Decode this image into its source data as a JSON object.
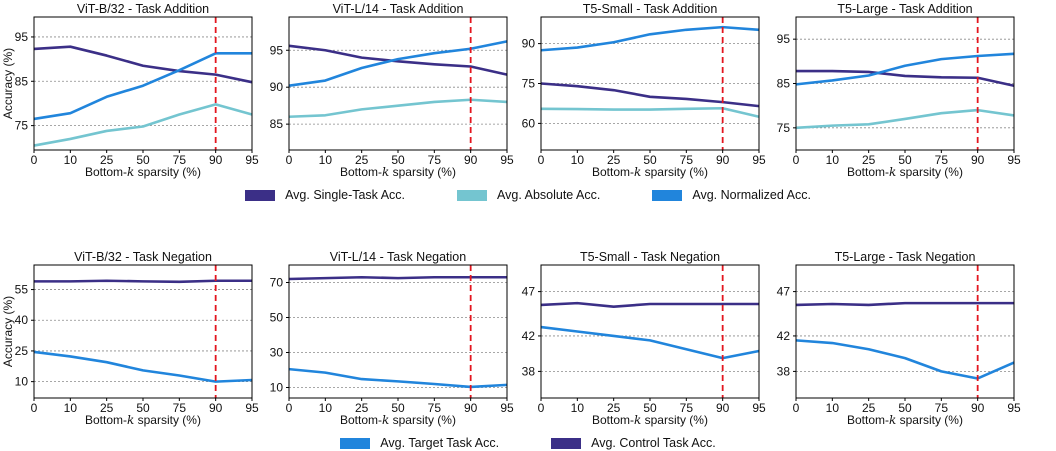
{
  "colors": {
    "single": "#3b2f87",
    "absolute": "#74c5d0",
    "normalized": "#2185dc",
    "target": "#2185dc",
    "control": "#3b2f87",
    "vline": "#e3161f",
    "grid": "#8a8a8a"
  },
  "legend_top": {
    "single": "Avg. Single-Task Acc.",
    "absolute": "Avg. Absolute Acc.",
    "normalized": "Avg. Normalized Acc."
  },
  "legend_bottom": {
    "target": "Avg. Target Task Acc.",
    "control": "Avg. Control Task Acc."
  },
  "chart_data": [
    {
      "type": "line",
      "title": "ViT-B/32 - Task Addition",
      "xlabel": "Bottom-k sparsity (%)",
      "ylabel": "Accuracy (%)",
      "x": [
        "0",
        "10",
        "25",
        "50",
        "75",
        "90",
        "95"
      ],
      "yticks": [
        75,
        85,
        95
      ],
      "ylim": [
        69.5,
        99.5
      ],
      "vline": "90",
      "series": [
        {
          "name": "Avg. Single-Task Acc.",
          "color": "single",
          "values": [
            92.3,
            92.8,
            90.8,
            88.5,
            87.3,
            86.5,
            84.8
          ]
        },
        {
          "name": "Avg. Absolute Acc.",
          "color": "absolute",
          "values": [
            70.5,
            72.0,
            73.8,
            74.8,
            77.5,
            79.8,
            77.5
          ]
        },
        {
          "name": "Avg. Normalized Acc.",
          "color": "normalized",
          "values": [
            76.5,
            77.8,
            81.5,
            84.0,
            87.5,
            91.3,
            91.3
          ]
        }
      ]
    },
    {
      "type": "line",
      "title": "ViT-L/14 - Task Addition",
      "xlabel": "Bottom-k sparsity (%)",
      "ylabel": "",
      "x": [
        "0",
        "10",
        "25",
        "50",
        "75",
        "90",
        "95"
      ],
      "yticks": [
        85,
        90,
        95
      ],
      "ylim": [
        81.5,
        99.5
      ],
      "vline": "90",
      "series": [
        {
          "name": "Avg. Single-Task Acc.",
          "color": "single",
          "values": [
            95.6,
            95.0,
            94.0,
            93.5,
            93.1,
            92.8,
            91.7
          ]
        },
        {
          "name": "Avg. Absolute Acc.",
          "color": "absolute",
          "values": [
            86.0,
            86.2,
            87.0,
            87.5,
            88.0,
            88.3,
            88.0
          ]
        },
        {
          "name": "Avg. Normalized Acc.",
          "color": "normalized",
          "values": [
            90.2,
            90.9,
            92.6,
            93.8,
            94.6,
            95.2,
            96.2
          ]
        }
      ]
    },
    {
      "type": "line",
      "title": "T5-Small - Task Addition",
      "xlabel": "Bottom-k sparsity (%)",
      "ylabel": "",
      "x": [
        "0",
        "10",
        "25",
        "50",
        "75",
        "90",
        "95"
      ],
      "yticks": [
        60,
        75,
        90
      ],
      "ylim": [
        50,
        100
      ],
      "vline": "90",
      "series": [
        {
          "name": "Avg. Single-Task Acc.",
          "color": "single",
          "values": [
            75.0,
            74.0,
            72.5,
            70.0,
            69.2,
            68.0,
            66.5
          ]
        },
        {
          "name": "Avg. Absolute Acc.",
          "color": "absolute",
          "values": [
            65.5,
            65.4,
            65.2,
            65.2,
            65.5,
            65.7,
            62.5
          ]
        },
        {
          "name": "Avg. Normalized Acc.",
          "color": "normalized",
          "values": [
            87.5,
            88.5,
            90.5,
            93.5,
            95.2,
            96.2,
            95.2
          ]
        }
      ]
    },
    {
      "type": "line",
      "title": "T5-Large - Task Addition",
      "xlabel": "Bottom-k sparsity (%)",
      "ylabel": "",
      "x": [
        "0",
        "10",
        "25",
        "50",
        "75",
        "90",
        "95"
      ],
      "yticks": [
        75,
        85,
        95
      ],
      "ylim": [
        70,
        100
      ],
      "vline": "90",
      "series": [
        {
          "name": "Avg. Single-Task Acc.",
          "color": "single",
          "values": [
            87.8,
            87.8,
            87.6,
            86.7,
            86.4,
            86.3,
            84.5
          ]
        },
        {
          "name": "Avg. Absolute Acc.",
          "color": "absolute",
          "values": [
            75.0,
            75.5,
            75.8,
            77.0,
            78.3,
            79.0,
            77.8
          ]
        },
        {
          "name": "Avg. Normalized Acc.",
          "color": "normalized",
          "values": [
            84.8,
            85.7,
            86.8,
            89.0,
            90.5,
            91.2,
            91.7
          ]
        }
      ]
    },
    {
      "type": "line",
      "title": "ViT-B/32 - Task Negation",
      "xlabel": "Bottom-k sparsity (%)",
      "ylabel": "Accuracy (%)",
      "x": [
        "0",
        "10",
        "25",
        "50",
        "75",
        "90",
        "95"
      ],
      "yticks": [
        10,
        25,
        40,
        55
      ],
      "ylim": [
        2,
        67
      ],
      "vline": "90",
      "series": [
        {
          "name": "Avg. Target Task Acc.",
          "color": "target",
          "values": [
            24.5,
            22.3,
            19.5,
            15.5,
            13.0,
            10.0,
            10.8
          ]
        },
        {
          "name": "Avg. Control Task Acc.",
          "color": "control",
          "values": [
            59.0,
            59.0,
            59.3,
            59.0,
            58.8,
            59.3,
            59.3
          ]
        }
      ]
    },
    {
      "type": "line",
      "title": "ViT-L/14 - Task Negation",
      "xlabel": "Bottom-k sparsity (%)",
      "ylabel": "",
      "x": [
        "0",
        "10",
        "25",
        "50",
        "75",
        "90",
        "95"
      ],
      "yticks": [
        10,
        30,
        50,
        70
      ],
      "ylim": [
        4,
        80
      ],
      "vline": "90",
      "series": [
        {
          "name": "Avg. Target Task Acc.",
          "color": "target",
          "values": [
            20.5,
            18.5,
            14.8,
            13.5,
            12.0,
            10.3,
            11.5
          ]
        },
        {
          "name": "Avg. Control Task Acc.",
          "color": "control",
          "values": [
            72.0,
            72.5,
            73.0,
            72.5,
            73.0,
            73.0,
            73.0
          ]
        }
      ]
    },
    {
      "type": "line",
      "title": "T5-Small - Task Negation",
      "xlabel": "Bottom-k sparsity (%)",
      "ylabel": "",
      "x": [
        "0",
        "10",
        "25",
        "50",
        "75",
        "90",
        "95"
      ],
      "yticks": [
        38,
        42,
        47
      ],
      "ylim": [
        35,
        50
      ],
      "vline": "90",
      "series": [
        {
          "name": "Avg. Target Task Acc.",
          "color": "target",
          "values": [
            43.0,
            42.5,
            42.0,
            41.5,
            40.5,
            39.5,
            40.3
          ]
        },
        {
          "name": "Avg. Control Task Acc.",
          "color": "control",
          "values": [
            45.5,
            45.7,
            45.3,
            45.6,
            45.6,
            45.6,
            45.6
          ]
        }
      ]
    },
    {
      "type": "line",
      "title": "T5-Large - Task Negation",
      "xlabel": "Bottom-k sparsity (%)",
      "ylabel": "",
      "x": [
        "0",
        "10",
        "25",
        "50",
        "75",
        "90",
        "95"
      ],
      "yticks": [
        38,
        42,
        47
      ],
      "ylim": [
        35,
        50
      ],
      "vline": "90",
      "series": [
        {
          "name": "Avg. Target Task Acc.",
          "color": "target",
          "values": [
            41.5,
            41.2,
            40.5,
            39.5,
            38.0,
            37.2,
            39.0
          ]
        },
        {
          "name": "Avg. Control Task Acc.",
          "color": "control",
          "values": [
            45.5,
            45.6,
            45.5,
            45.7,
            45.7,
            45.7,
            45.7
          ]
        }
      ]
    }
  ]
}
